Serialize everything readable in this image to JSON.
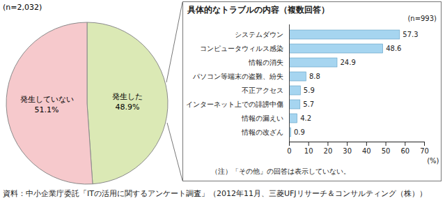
{
  "chart_data": [
    {
      "type": "pie",
      "subtitle": "(n=2,032)",
      "categories": [
        "発生した",
        "発生していない"
      ],
      "values": [
        48.9,
        51.1
      ],
      "value_labels": [
        "48.9%",
        "51.1%"
      ],
      "colors": [
        "#dbe9b5",
        "#f6c9cc"
      ],
      "data_labels": true
    },
    {
      "type": "bar",
      "orientation": "horizontal",
      "title": "具体的なトラブルの内容（複数回答）",
      "subtitle": "(n=993)",
      "categories": [
        "システムダウン",
        "コンピュータウィルス感染",
        "情報の消失",
        "パソコン等端末の盗難、紛失",
        "不正アクセス",
        "インターネット上での誹謗中傷",
        "情報の漏えい",
        "情報の改ざん"
      ],
      "values": [
        57.3,
        48.6,
        24.9,
        8.8,
        5.9,
        5.7,
        4.2,
        0.9
      ],
      "color": "#a6d5f0",
      "xlim": [
        0,
        70
      ],
      "xticks": [
        0,
        10,
        20,
        30,
        40,
        50,
        60,
        70
      ],
      "x_label": "(%)",
      "data_labels": true,
      "grid": false,
      "annotations": [
        "（注）「その他」の回答は表示していない。"
      ]
    }
  ],
  "source": "資料：中小企業庁委託「ITの活用に関するアンケート調査」（2012年11月、三菱UFJリサーチ＆コンサルティング（株））"
}
